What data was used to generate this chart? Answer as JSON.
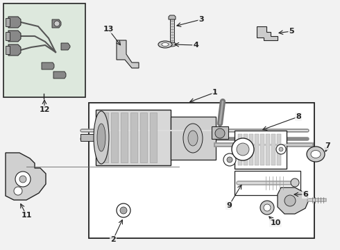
{
  "bg_color": "#f2f2f2",
  "white": "#ffffff",
  "light_gray": "#e0e0e0",
  "mid_gray": "#b0b0b0",
  "dark_gray": "#666666",
  "line_color": "#222222",
  "box12_bg": "#dde8dd",
  "main_box_bg": "#f8f8f8",
  "part_fill": "#cccccc",
  "part_edge": "#444444"
}
